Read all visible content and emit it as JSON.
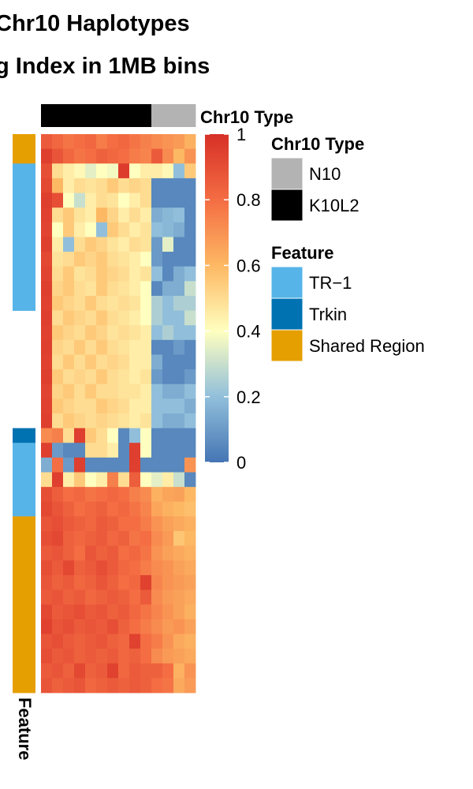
{
  "titles": {
    "line1": "Chr10 Haplotypes",
    "line2": "g Index in 1MB bins"
  },
  "chart_data": {
    "type": "heatmap",
    "value_range": [
      0,
      1
    ],
    "colorbar": {
      "ticks": [
        "1",
        "0.8",
        "0.6",
        "0.4",
        "0.2",
        "0"
      ],
      "colors": [
        "#4575b4",
        "#91bfdb",
        "#ffffbf",
        "#fdb863",
        "#f46d43",
        "#d73027"
      ]
    },
    "column_annotation": {
      "name": "Chr10 Type",
      "columns": [
        "K10L2",
        "K10L2",
        "K10L2",
        "K10L2",
        "K10L2",
        "K10L2",
        "K10L2",
        "K10L2",
        "K10L2",
        "K10L2",
        "N10",
        "N10",
        "N10",
        "N10"
      ]
    },
    "row_annotation": {
      "name": "Feature",
      "rows": [
        "Shared Region",
        "Shared Region",
        "TR-1",
        "TR-1",
        "TR-1",
        "TR-1",
        "TR-1",
        "TR-1",
        "TR-1",
        "TR-1",
        "TR-1",
        "TR-1",
        "gap",
        "gap",
        "gap",
        "gap",
        "gap",
        "gap",
        "gap",
        "gap",
        "Trkin",
        "TR-1",
        "TR-1",
        "TR-1",
        "TR-1",
        "TR-1",
        "Shared Region",
        "Shared Region",
        "Shared Region",
        "Shared Region",
        "Shared Region",
        "Shared Region",
        "Shared Region",
        "Shared Region",
        "Shared Region",
        "Shared Region",
        "Shared Region",
        "Shared Region"
      ]
    },
    "legends": [
      {
        "title": "Chr10 Type",
        "items": [
          {
            "label": "N10",
            "color": "#b3b3b3"
          },
          {
            "label": "K10L2",
            "color": "#000000"
          }
        ]
      },
      {
        "title": "Feature",
        "items": [
          {
            "label": "TR−1",
            "color": "#56b4e9"
          },
          {
            "label": "Trkin",
            "color": "#0072b2"
          },
          {
            "label": "Shared Region",
            "color": "#e69f00"
          }
        ]
      }
    ],
    "row_annotation_label": "Feature",
    "col_annotation_label": "Chr10 Type",
    "values": [
      [
        0.86,
        0.82,
        0.78,
        0.8,
        0.82,
        0.76,
        0.8,
        0.82,
        0.78,
        0.75,
        0.72,
        0.7,
        0.68,
        0.62
      ],
      [
        0.95,
        0.88,
        0.82,
        0.78,
        0.8,
        0.84,
        0.82,
        0.8,
        0.76,
        0.74,
        0.86,
        0.72,
        0.6,
        0.7
      ],
      [
        0.9,
        0.5,
        0.45,
        0.42,
        0.35,
        0.4,
        0.38,
        0.96,
        0.4,
        0.45,
        0.45,
        0.42,
        0.2,
        0.55
      ],
      [
        0.92,
        0.6,
        0.45,
        0.5,
        0.48,
        0.5,
        0.55,
        0.5,
        0.52,
        0.5,
        0.05,
        0.05,
        0.05,
        0.05
      ],
      [
        0.95,
        0.9,
        0.4,
        0.3,
        0.45,
        0.5,
        0.48,
        0.4,
        0.45,
        0.5,
        0.05,
        0.05,
        0.05,
        0.05
      ],
      [
        0.94,
        0.5,
        0.55,
        0.48,
        0.45,
        0.6,
        0.52,
        0.45,
        0.5,
        0.45,
        0.15,
        0.18,
        0.2,
        0.05
      ],
      [
        0.93,
        0.4,
        0.55,
        0.45,
        0.4,
        0.2,
        0.55,
        0.5,
        0.45,
        0.48,
        0.2,
        0.18,
        0.15,
        0.05
      ],
      [
        0.95,
        0.45,
        0.2,
        0.5,
        0.55,
        0.52,
        0.48,
        0.45,
        0.5,
        0.48,
        0.1,
        0.35,
        0.05,
        0.05
      ],
      [
        0.92,
        0.48,
        0.5,
        0.55,
        0.52,
        0.55,
        0.5,
        0.48,
        0.45,
        0.4,
        0.1,
        0.05,
        0.05,
        0.05
      ],
      [
        0.93,
        0.5,
        0.55,
        0.48,
        0.5,
        0.55,
        0.52,
        0.5,
        0.45,
        0.48,
        0.2,
        0.05,
        0.15,
        0.2
      ],
      [
        0.95,
        0.52,
        0.55,
        0.5,
        0.48,
        0.55,
        0.5,
        0.48,
        0.45,
        0.4,
        0.05,
        0.15,
        0.15,
        0.3
      ],
      [
        0.94,
        0.55,
        0.52,
        0.5,
        0.55,
        0.5,
        0.48,
        0.5,
        0.48,
        0.4,
        0.25,
        0.2,
        0.25,
        0.25
      ],
      [
        0.95,
        0.5,
        0.55,
        0.52,
        0.5,
        0.55,
        0.5,
        0.48,
        0.45,
        0.4,
        0.25,
        0.2,
        0.2,
        0.3
      ],
      [
        0.94,
        0.55,
        0.52,
        0.5,
        0.55,
        0.52,
        0.48,
        0.5,
        0.48,
        0.45,
        0.2,
        0.25,
        0.2,
        0.2
      ],
      [
        0.95,
        0.52,
        0.5,
        0.55,
        0.5,
        0.55,
        0.5,
        0.48,
        0.45,
        0.45,
        0.05,
        0.05,
        0.1,
        0.05
      ],
      [
        0.94,
        0.5,
        0.55,
        0.5,
        0.55,
        0.5,
        0.52,
        0.5,
        0.45,
        0.45,
        0.15,
        0.05,
        0.05,
        0.05
      ],
      [
        0.95,
        0.55,
        0.5,
        0.52,
        0.5,
        0.55,
        0.5,
        0.48,
        0.45,
        0.48,
        0.1,
        0.05,
        0.05,
        0.1
      ],
      [
        0.93,
        0.52,
        0.55,
        0.5,
        0.55,
        0.5,
        0.5,
        0.48,
        0.48,
        0.45,
        0.2,
        0.15,
        0.15,
        0.2
      ],
      [
        0.94,
        0.55,
        0.52,
        0.5,
        0.5,
        0.55,
        0.52,
        0.5,
        0.45,
        0.45,
        0.2,
        0.2,
        0.2,
        0.15
      ],
      [
        0.95,
        0.5,
        0.55,
        0.52,
        0.5,
        0.52,
        0.5,
        0.48,
        0.45,
        0.48,
        0.2,
        0.15,
        0.15,
        0.2
      ],
      [
        0.72,
        0.75,
        0.5,
        0.95,
        0.55,
        0.5,
        0.4,
        0.05,
        0.2,
        0.4,
        0.05,
        0.05,
        0.05,
        0.05
      ],
      [
        0.95,
        0.1,
        0.05,
        0.05,
        0.5,
        0.5,
        0.45,
        0.05,
        0.95,
        0.4,
        0.05,
        0.05,
        0.05,
        0.05
      ],
      [
        0.15,
        0.8,
        0.1,
        0.95,
        0.05,
        0.05,
        0.05,
        0.05,
        0.95,
        0.05,
        0.05,
        0.05,
        0.05,
        0.7
      ],
      [
        0.5,
        0.95,
        0.45,
        0.55,
        0.4,
        0.45,
        0.75,
        0.5,
        0.85,
        0.4,
        0.35,
        0.45,
        0.3,
        0.05
      ],
      [
        0.9,
        0.85,
        0.8,
        0.82,
        0.78,
        0.8,
        0.82,
        0.8,
        0.75,
        0.72,
        0.62,
        0.65,
        0.66,
        0.6
      ],
      [
        0.92,
        0.88,
        0.84,
        0.8,
        0.82,
        0.84,
        0.8,
        0.82,
        0.78,
        0.74,
        0.65,
        0.62,
        0.6,
        0.58
      ],
      [
        0.88,
        0.9,
        0.86,
        0.84,
        0.82,
        0.86,
        0.84,
        0.8,
        0.8,
        0.76,
        0.7,
        0.66,
        0.64,
        0.62
      ],
      [
        0.9,
        0.92,
        0.84,
        0.82,
        0.84,
        0.86,
        0.82,
        0.84,
        0.78,
        0.8,
        0.72,
        0.68,
        0.56,
        0.6
      ],
      [
        0.86,
        0.88,
        0.84,
        0.8,
        0.88,
        0.84,
        0.86,
        0.8,
        0.82,
        0.78,
        0.7,
        0.66,
        0.64,
        0.62
      ],
      [
        0.9,
        0.86,
        0.92,
        0.84,
        0.86,
        0.9,
        0.86,
        0.82,
        0.8,
        0.76,
        0.72,
        0.7,
        0.66,
        0.64
      ],
      [
        0.88,
        0.84,
        0.86,
        0.82,
        0.84,
        0.88,
        0.84,
        0.8,
        0.82,
        0.94,
        0.74,
        0.7,
        0.68,
        0.66
      ],
      [
        0.86,
        0.88,
        0.84,
        0.86,
        0.82,
        0.84,
        0.86,
        0.84,
        0.8,
        0.86,
        0.72,
        0.68,
        0.66,
        0.64
      ],
      [
        0.92,
        0.86,
        0.88,
        0.9,
        0.86,
        0.88,
        0.84,
        0.86,
        0.82,
        0.78,
        0.74,
        0.7,
        0.66,
        0.62
      ],
      [
        0.94,
        0.88,
        0.9,
        0.86,
        0.88,
        0.86,
        0.9,
        0.84,
        0.8,
        0.76,
        0.72,
        0.68,
        0.7,
        0.66
      ],
      [
        0.88,
        0.9,
        0.86,
        0.84,
        0.86,
        0.88,
        0.84,
        0.82,
        0.94,
        0.8,
        0.76,
        0.7,
        0.64,
        0.62
      ],
      [
        0.9,
        0.86,
        0.88,
        0.84,
        0.86,
        0.84,
        0.86,
        0.82,
        0.84,
        0.8,
        0.72,
        0.68,
        0.66,
        0.64
      ],
      [
        0.86,
        0.88,
        0.84,
        0.92,
        0.84,
        0.86,
        0.94,
        0.82,
        0.86,
        0.84,
        0.84,
        0.8,
        0.62,
        0.7
      ],
      [
        0.88,
        0.84,
        0.86,
        0.88,
        0.82,
        0.84,
        0.86,
        0.84,
        0.86,
        0.84,
        0.8,
        0.78,
        0.64,
        0.68
      ]
    ]
  }
}
